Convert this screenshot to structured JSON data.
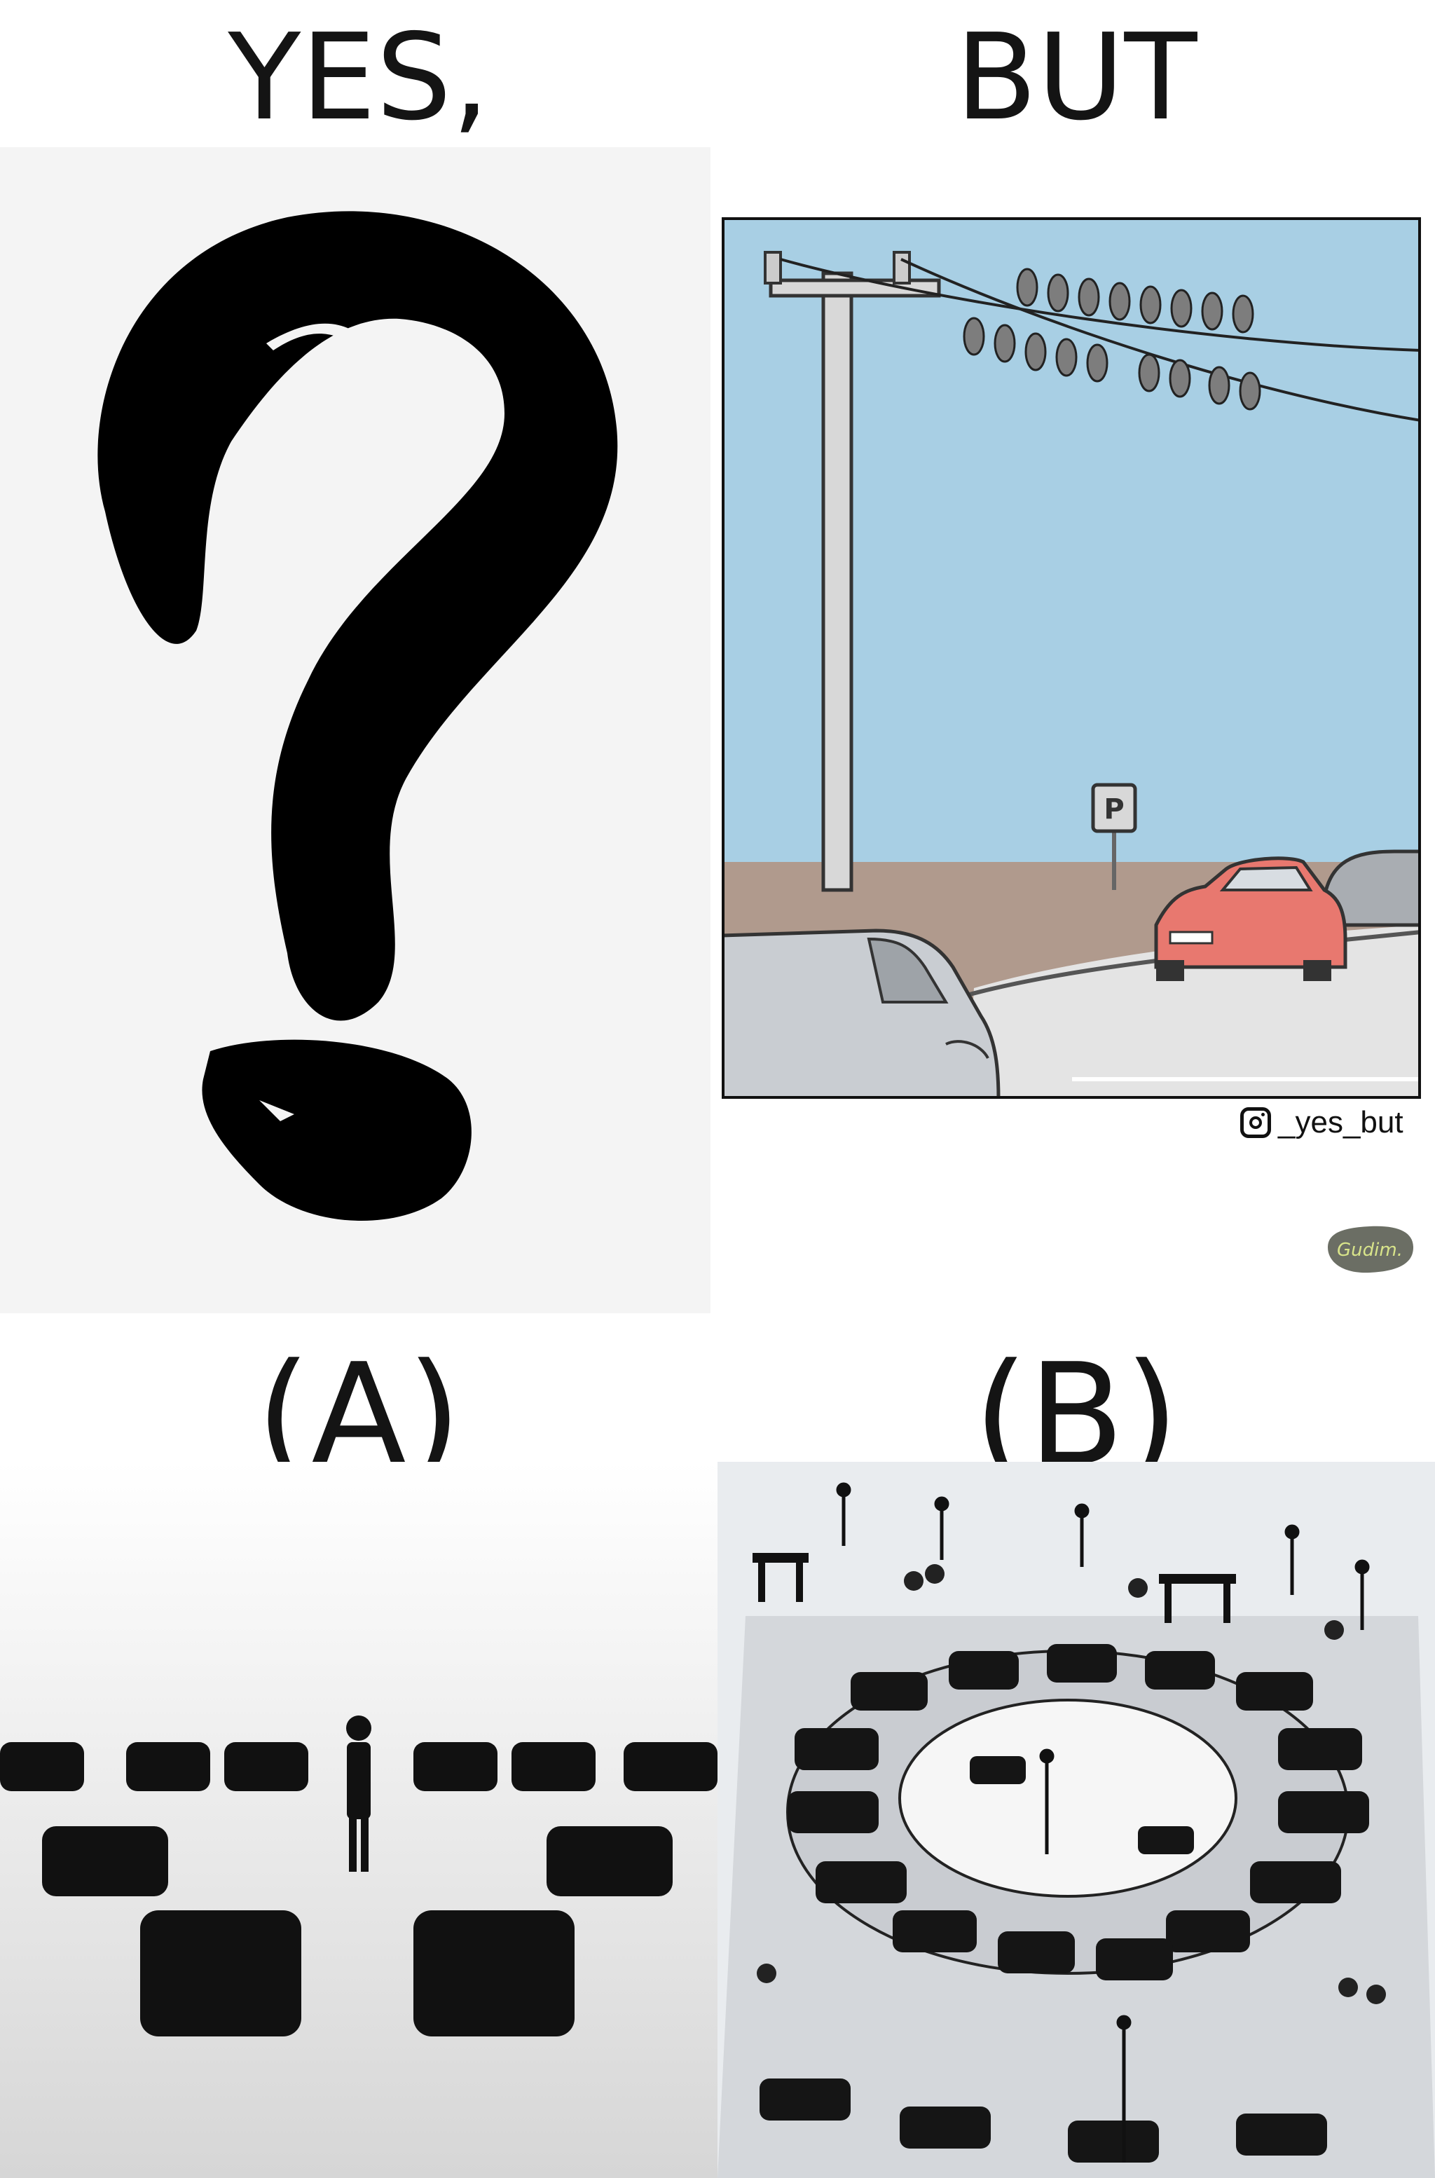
{
  "headings": {
    "yes": "YES,",
    "but": "BUT",
    "option_a": "(A)",
    "option_b": "(B)"
  },
  "comic": {
    "parking_sign": "P",
    "instagram_handle": "_yes_but",
    "signature": "Gudim."
  },
  "icons": {
    "question_mark": "question-mark-icon",
    "instagram": "instagram-icon"
  },
  "colors": {
    "sky": "#a8cfe4",
    "ground": "#b09a8d",
    "road": "#e4e4e4",
    "red_car": "#e8786f",
    "grey_car": "#c9cdd2",
    "signature_badge": "#6b6e64",
    "signature_text": "#d8e48a"
  }
}
